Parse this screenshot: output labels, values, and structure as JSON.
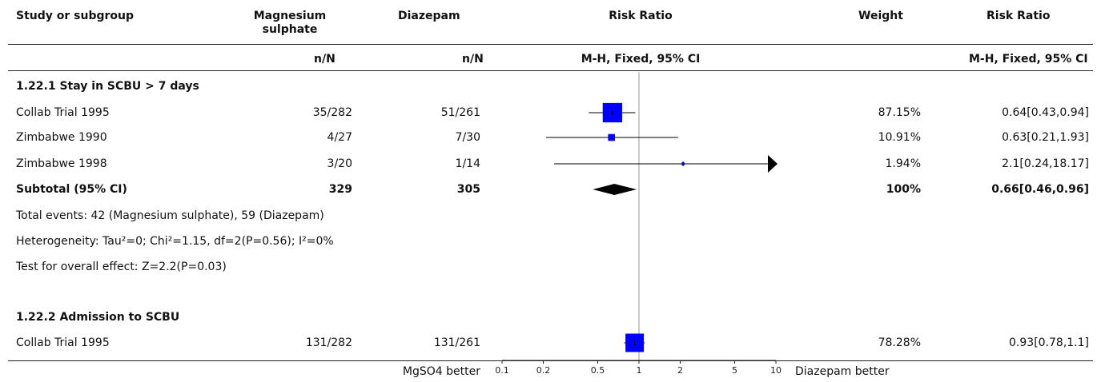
{
  "header": {
    "study": "Study or subgroup",
    "group1": "Magnesium sulphate",
    "group2": "Diazepam",
    "plot": "Risk Ratio",
    "weight": "Weight",
    "rr": "Risk Ratio",
    "nn1": "n/N",
    "nn2": "n/N",
    "method_plot": "M-H, Fixed, 95% CI",
    "method_rr": "M-H, Fixed, 95% CI"
  },
  "chart_data": {
    "type": "forest",
    "scale": "log",
    "x_ticks": [
      0.1,
      0.2,
      0.5,
      1,
      2,
      5,
      10
    ],
    "x_tick_labels": [
      "0.1",
      "0.2",
      "0.5",
      "1",
      "2",
      "5",
      "10"
    ],
    "left_label": "MgSO4 better",
    "right_label": "Diazepam better",
    "subgroups": [
      {
        "title": "1.22.1 Stay in SCBU > 7 days",
        "studies": [
          {
            "name": "Collab Trial 1995",
            "e1": "35/282",
            "e2": "51/261",
            "weight": "87.15%",
            "rr_text": "0.64[0.43,0.94]",
            "rr": 0.64,
            "lo": 0.43,
            "hi": 0.94,
            "w": 87.15
          },
          {
            "name": "Zimbabwe 1990",
            "e1": "4/27",
            "e2": "7/30",
            "weight": "10.91%",
            "rr_text": "0.63[0.21,1.93]",
            "rr": 0.63,
            "lo": 0.21,
            "hi": 1.93,
            "w": 10.91
          },
          {
            "name": "Zimbabwe 1998",
            "e1": "3/20",
            "e2": "1/14",
            "weight": "1.94%",
            "rr_text": "2.1[0.24,18.17]",
            "rr": 2.1,
            "lo": 0.24,
            "hi": 18.17,
            "w": 1.94
          }
        ],
        "subtotal": {
          "label": "Subtotal (95% CI)",
          "n1": "329",
          "n2": "305",
          "weight": "100%",
          "rr_text": "0.66[0.46,0.96]",
          "rr": 0.66,
          "lo": 0.46,
          "hi": 0.96
        },
        "notes": [
          "Total events: 42 (Magnesium sulphate), 59 (Diazepam)",
          "Heterogeneity: Tau²=0; Chi²=1.15, df=2(P=0.56); I²=0%",
          "Test for overall effect: Z=2.2(P=0.03)"
        ]
      },
      {
        "title": "1.22.2 Admission to SCBU",
        "studies": [
          {
            "name": "Collab Trial 1995",
            "e1": "131/282",
            "e2": "131/261",
            "weight": "78.28%",
            "rr_text": "0.93[0.78,1.1]",
            "rr": 0.93,
            "lo": 0.78,
            "hi": 1.1,
            "w": 78.28
          }
        ]
      }
    ]
  }
}
